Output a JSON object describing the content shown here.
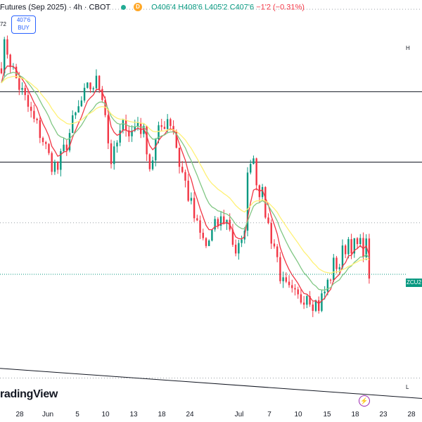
{
  "header": {
    "symbol": "Futures (Sep 2025) · 4h · CBOT",
    "d_badge": "D",
    "ohlc": "O406'4 H408'6 L405'2 C407'6",
    "change": "−1'2 (−0.31%)"
  },
  "buy_button": {
    "price": "407'6",
    "label": "BUY"
  },
  "left_fragment": "72",
  "logo_text": "radingView",
  "right_tags": {
    "upper": "H",
    "zcu": "ZCU2",
    "lower": "L"
  },
  "colors": {
    "up": "#089981",
    "down": "#f23645",
    "ma_fast": "#f23645",
    "ma_mid": "#81c784",
    "ma_slow": "#fff176",
    "drawn_line": "#131722",
    "dotted": "#9aa0a6",
    "price_line": "#089981"
  },
  "chart_data": {
    "type": "candlestick",
    "price_range": [
      395,
      435
    ],
    "x_ticks": [
      "28",
      "Jun",
      "5",
      "10",
      "13",
      "18",
      "24",
      "Jul",
      "7",
      "10",
      "15",
      "18",
      "23",
      "28"
    ],
    "horizontal_lines": [
      427.0,
      419.75
    ],
    "dotted_levels": [
      435.5,
      413.5,
      397.5
    ],
    "trendline": {
      "start": [
        0,
        398.5
      ],
      "end": [
        1,
        395.4
      ]
    },
    "ohlc_anchors": [
      [
        0,
        430.0
      ],
      [
        0.01,
        432.0
      ],
      [
        0.03,
        429.0
      ],
      [
        0.05,
        427.0
      ],
      [
        0.08,
        424.0
      ],
      [
        0.1,
        422.5
      ],
      [
        0.12,
        420.0
      ],
      [
        0.14,
        419.0
      ],
      [
        0.16,
        421.5
      ],
      [
        0.18,
        424.0
      ],
      [
        0.2,
        426.0
      ],
      [
        0.22,
        427.5
      ],
      [
        0.24,
        428.0
      ],
      [
        0.255,
        426.5
      ],
      [
        0.265,
        422.0
      ],
      [
        0.275,
        419.5
      ],
      [
        0.29,
        422.0
      ],
      [
        0.31,
        424.0
      ],
      [
        0.32,
        422.5
      ],
      [
        0.34,
        424.0
      ],
      [
        0.36,
        422.0
      ],
      [
        0.37,
        419.0
      ],
      [
        0.385,
        422.0
      ],
      [
        0.4,
        423.5
      ],
      [
        0.415,
        424.5
      ],
      [
        0.43,
        423.0
      ],
      [
        0.44,
        420.0
      ],
      [
        0.455,
        418.0
      ],
      [
        0.47,
        415.5
      ],
      [
        0.49,
        412.5
      ],
      [
        0.51,
        411.0
      ],
      [
        0.525,
        412.5
      ],
      [
        0.54,
        413.5
      ],
      [
        0.555,
        414.0
      ],
      [
        0.57,
        413.0
      ],
      [
        0.58,
        410.5
      ],
      [
        0.6,
        411.0
      ],
      [
        0.61,
        416.0
      ],
      [
        0.615,
        420.0
      ],
      [
        0.625,
        421.0
      ],
      [
        0.635,
        418.0
      ],
      [
        0.65,
        416.0
      ],
      [
        0.665,
        413.0
      ],
      [
        0.68,
        411.0
      ],
      [
        0.7,
        407.0
      ],
      [
        0.72,
        406.0
      ],
      [
        0.74,
        405.5
      ],
      [
        0.76,
        406.5
      ],
      [
        0.775,
        405.5
      ],
      [
        0.79,
        405.0
      ],
      [
        0.81,
        407.0
      ],
      [
        0.83,
        409.5
      ],
      [
        0.84,
        409.0
      ],
      [
        0.85,
        410.5
      ],
      [
        0.865,
        412.0
      ],
      [
        0.875,
        411.0
      ]
    ],
    "last_close": 407.75
  }
}
